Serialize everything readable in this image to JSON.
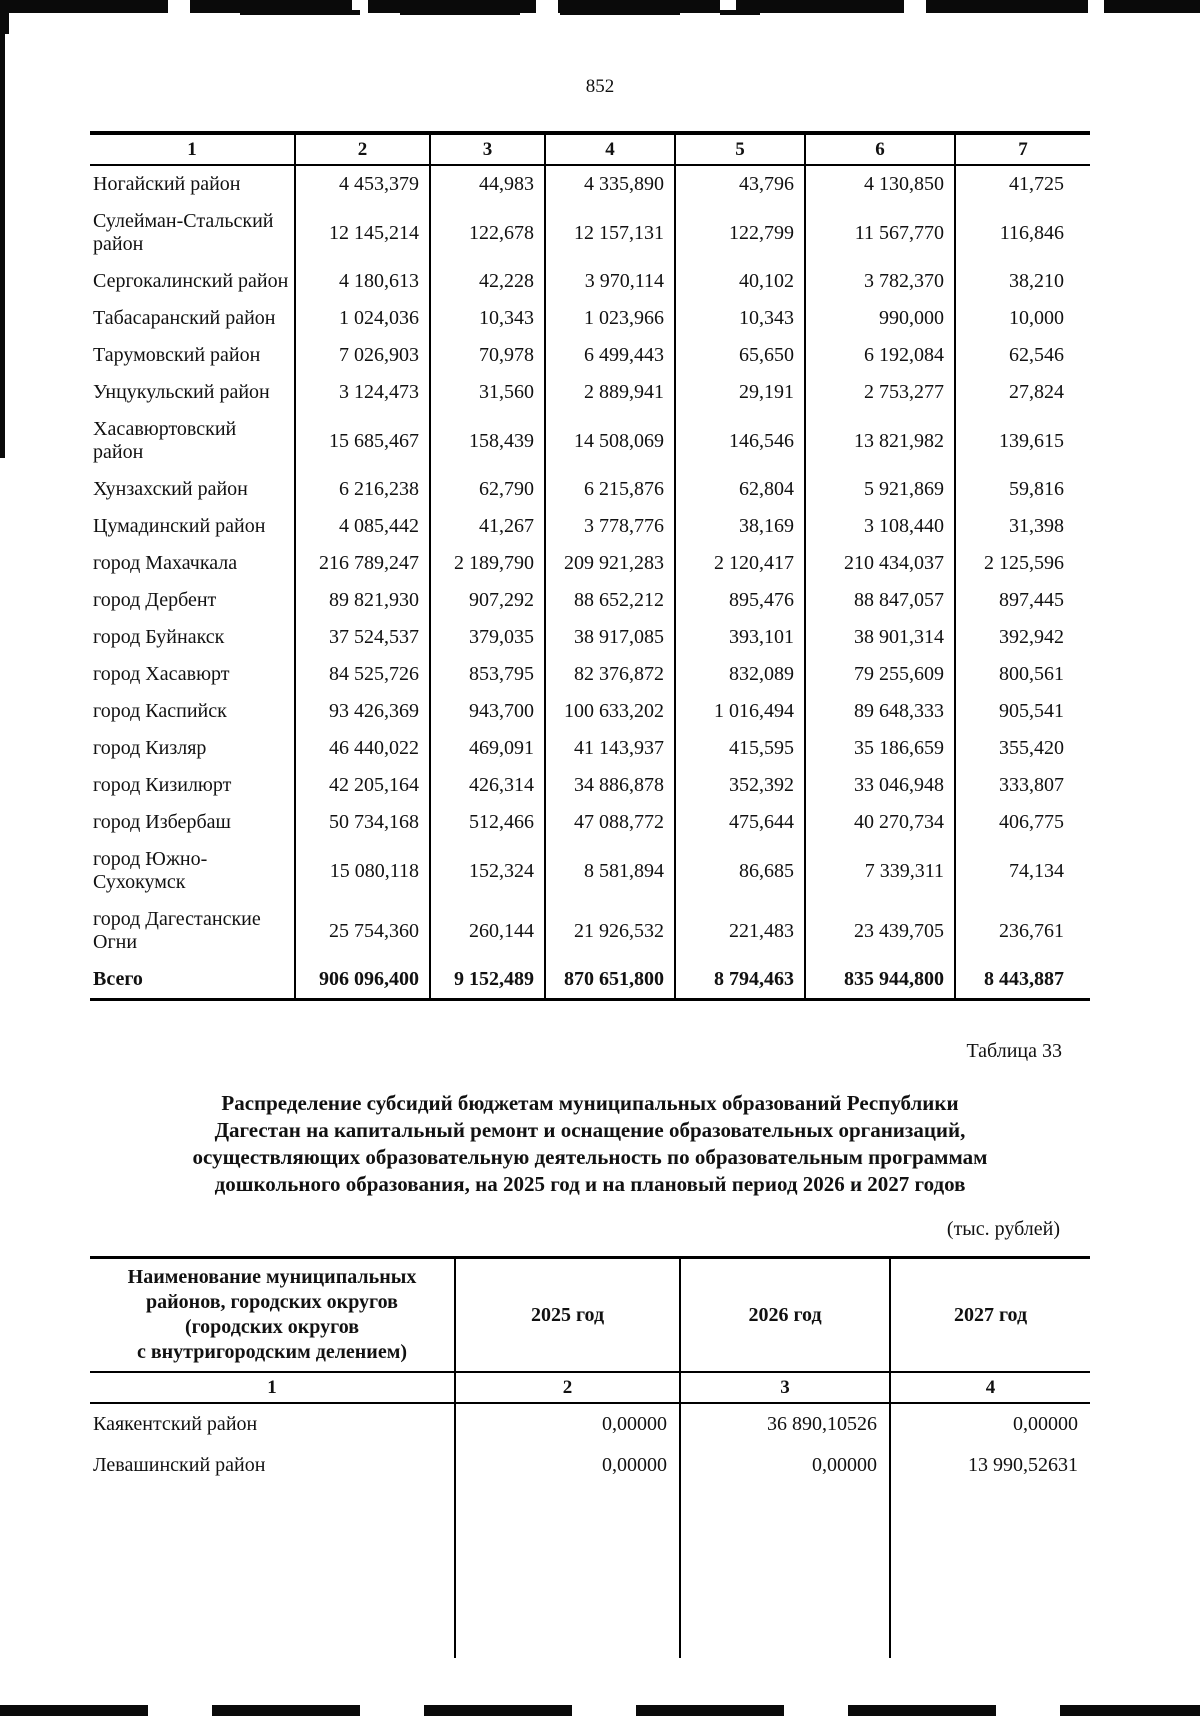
{
  "page": {
    "number": "852"
  },
  "table1": {
    "col_numbers": [
      "1",
      "2",
      "3",
      "4",
      "5",
      "6",
      "7"
    ],
    "rows": [
      {
        "name": "Ногайский район",
        "values": [
          "4 453,379",
          "44,983",
          "4 335,890",
          "43,796",
          "4 130,850",
          "41,725"
        ]
      },
      {
        "name": "Сулейман-Стальский район",
        "values": [
          "12 145,214",
          "122,678",
          "12 157,131",
          "122,799",
          "11 567,770",
          "116,846"
        ]
      },
      {
        "name": "Сергокалинский район",
        "values": [
          "4 180,613",
          "42,228",
          "3 970,114",
          "40,102",
          "3 782,370",
          "38,210"
        ]
      },
      {
        "name": "Табасаранский район",
        "values": [
          "1 024,036",
          "10,343",
          "1 023,966",
          "10,343",
          "990,000",
          "10,000"
        ]
      },
      {
        "name": "Тарумовский район",
        "values": [
          "7 026,903",
          "70,978",
          "6 499,443",
          "65,650",
          "6 192,084",
          "62,546"
        ]
      },
      {
        "name": "Унцукульский район",
        "values": [
          "3 124,473",
          "31,560",
          "2 889,941",
          "29,191",
          "2 753,277",
          "27,824"
        ]
      },
      {
        "name": "Хасавюртовский район",
        "values": [
          "15 685,467",
          "158,439",
          "14 508,069",
          "146,546",
          "13 821,982",
          "139,615"
        ]
      },
      {
        "name": "Хунзахский район",
        "values": [
          "6 216,238",
          "62,790",
          "6 215,876",
          "62,804",
          "5 921,869",
          "59,816"
        ]
      },
      {
        "name": "Цумадинский район",
        "values": [
          "4 085,442",
          "41,267",
          "3 778,776",
          "38,169",
          "3 108,440",
          "31,398"
        ]
      },
      {
        "name": "город Махачкала",
        "values": [
          "216 789,247",
          "2 189,790",
          "209 921,283",
          "2 120,417",
          "210 434,037",
          "2 125,596"
        ]
      },
      {
        "name": "город Дербент",
        "values": [
          "89 821,930",
          "907,292",
          "88 652,212",
          "895,476",
          "88 847,057",
          "897,445"
        ]
      },
      {
        "name": "город Буйнакск",
        "values": [
          "37 524,537",
          "379,035",
          "38 917,085",
          "393,101",
          "38 901,314",
          "392,942"
        ]
      },
      {
        "name": "город Хасавюрт",
        "values": [
          "84 525,726",
          "853,795",
          "82 376,872",
          "832,089",
          "79 255,609",
          "800,561"
        ]
      },
      {
        "name": "город Каспийск",
        "values": [
          "93 426,369",
          "943,700",
          "100 633,202",
          "1 016,494",
          "89 648,333",
          "905,541"
        ]
      },
      {
        "name": "город Кизляр",
        "values": [
          "46 440,022",
          "469,091",
          "41 143,937",
          "415,595",
          "35 186,659",
          "355,420"
        ]
      },
      {
        "name": "город Кизилюрт",
        "values": [
          "42 205,164",
          "426,314",
          "34 886,878",
          "352,392",
          "33 046,948",
          "333,807"
        ]
      },
      {
        "name": "город Избербаш",
        "values": [
          "50 734,168",
          "512,466",
          "47 088,772",
          "475,644",
          "40 270,734",
          "406,775"
        ]
      },
      {
        "name": "город Южно-Сухокумск",
        "values": [
          "15 080,118",
          "152,324",
          "8 581,894",
          "86,685",
          "7 339,311",
          "74,134"
        ]
      },
      {
        "name": "город Дагестанские Огни",
        "values": [
          "25 754,360",
          "260,144",
          "21 926,532",
          "221,483",
          "23 439,705",
          "236,761"
        ]
      },
      {
        "name": "Всего",
        "bold": true,
        "values": [
          "906 096,400",
          "9 152,489",
          "870 651,800",
          "8 794,463",
          "835 944,800",
          "8 443,887"
        ]
      }
    ]
  },
  "table33": {
    "label": "Таблица 33",
    "title": "Распределение субсидий бюджетам муниципальных образований Республики\nДагестан на капитальный ремонт и оснащение образовательных организаций,\nосуществляющих образовательную деятельность по образовательным программам\nдошкольного образования, на 2025 год и на плановый период 2026 и 2027 годов",
    "units": "(тыс. рублей)"
  },
  "table2": {
    "headers": [
      "Наименование муниципальных\nрайонов, городских округов\n(городских округов\nс внутригородским делением)",
      "2025 год",
      "2026 год",
      "2027 год"
    ],
    "col_numbers": [
      "1",
      "2",
      "3",
      "4"
    ],
    "rows": [
      {
        "name": "Каякентский район",
        "values": [
          "0,00000",
          "36 890,10526",
          "0,00000"
        ]
      },
      {
        "name": "Левашинский район",
        "values": [
          "0,00000",
          "0,00000",
          "13 990,52631"
        ]
      }
    ]
  }
}
